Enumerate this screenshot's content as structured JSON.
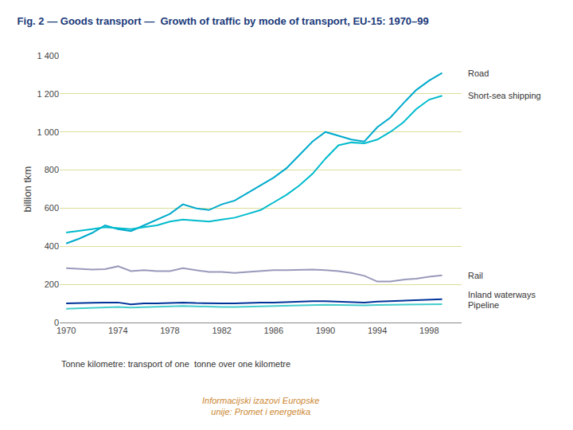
{
  "chart_data": {
    "type": "line",
    "title": "Fig. 2 — Goods transport —  Growth of traffic by mode of transport, EU-15: 1970–99",
    "ylabel": "billion tkm",
    "footnote": "Tonne kilometre: transport of one  tonne over one kilometre",
    "source": "Informacijski izazovi Europske\nunije: Promet i energetika",
    "x": [
      1970,
      1971,
      1972,
      1973,
      1974,
      1975,
      1976,
      1977,
      1978,
      1979,
      1980,
      1981,
      1982,
      1983,
      1984,
      1985,
      1986,
      1987,
      1988,
      1989,
      1990,
      1991,
      1992,
      1993,
      1994,
      1995,
      1996,
      1997,
      1998,
      1999
    ],
    "series": [
      {
        "name": "Road",
        "color": "#00AACC",
        "values": [
          415,
          440,
          470,
          510,
          490,
          480,
          510,
          540,
          570,
          620,
          600,
          590,
          620,
          640,
          680,
          720,
          760,
          810,
          880,
          950,
          1000,
          980,
          960,
          950,
          1025,
          1075,
          1150,
          1220,
          1270,
          1310
        ]
      },
      {
        "name": "Short-sea shipping",
        "color": "#00BBCC",
        "values": [
          472,
          480,
          490,
          500,
          495,
          490,
          500,
          510,
          530,
          540,
          535,
          530,
          540,
          550,
          570,
          590,
          630,
          670,
          720,
          780,
          860,
          930,
          945,
          940,
          960,
          1000,
          1050,
          1120,
          1170,
          1190
        ]
      },
      {
        "name": "Rail",
        "color": "#9999BB",
        "values": [
          285,
          282,
          278,
          280,
          295,
          270,
          275,
          270,
          270,
          285,
          275,
          265,
          265,
          260,
          265,
          270,
          275,
          275,
          278,
          278,
          275,
          270,
          260,
          245,
          215,
          215,
          225,
          230,
          240,
          248
        ]
      },
      {
        "name": "Inland waterways",
        "color": "#003399",
        "values": [
          100,
          100,
          103,
          105,
          105,
          95,
          100,
          100,
          103,
          105,
          102,
          100,
          100,
          100,
          103,
          105,
          105,
          108,
          110,
          112,
          112,
          110,
          108,
          105,
          110,
          112,
          115,
          118,
          120,
          122
        ]
      },
      {
        "name": "Pipeline",
        "color": "#44CCCC",
        "values": [
          72,
          74,
          75,
          78,
          82,
          78,
          80,
          82,
          85,
          87,
          85,
          82,
          82,
          82,
          84,
          85,
          87,
          88,
          90,
          92,
          93,
          92,
          90,
          90,
          92,
          93,
          94,
          95,
          95,
          96
        ]
      }
    ],
    "annotations": [
      {
        "text": "Road",
        "y": 1310
      },
      {
        "text": "Short-sea shipping",
        "y": 1190
      },
      {
        "text": "Rail",
        "y": 248
      },
      {
        "text": "Inland waterways",
        "y": 122
      },
      {
        "text": "Pipeline",
        "y": 90
      }
    ],
    "xlim": [
      1969.5,
      2000.5
    ],
    "xticks": [
      1970,
      1974,
      1978,
      1982,
      1986,
      1990,
      1994,
      1998
    ],
    "ylim": [
      0,
      1400
    ],
    "yticks": [
      0,
      200,
      400,
      600,
      800,
      {
        "value": 1000,
        "label": "1 000"
      },
      {
        "value": 1200,
        "label": "1 200"
      },
      {
        "value": 1400,
        "label": "1 400"
      }
    ],
    "grid": "y"
  }
}
